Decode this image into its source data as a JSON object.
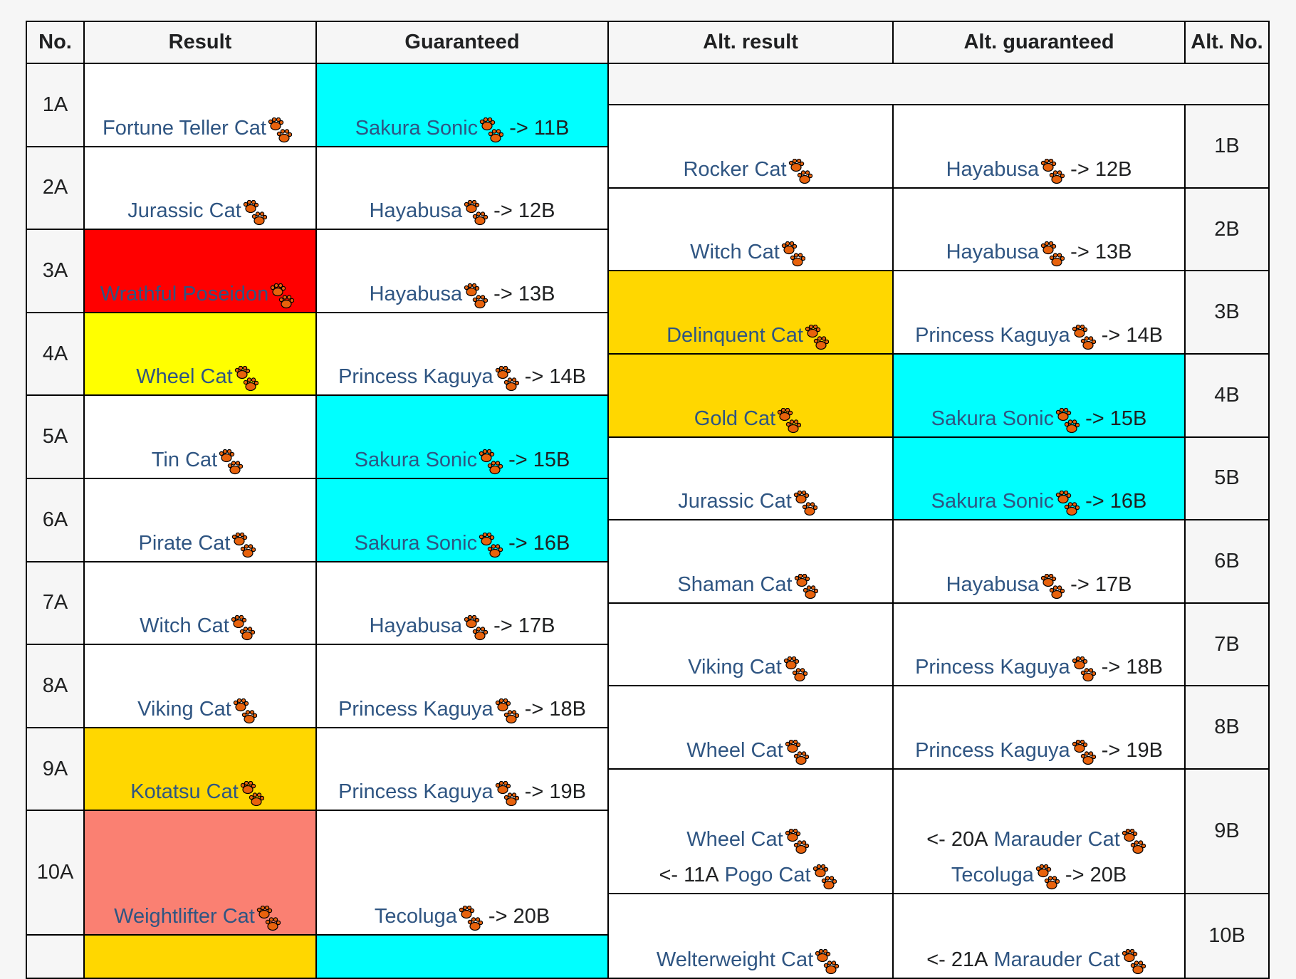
{
  "headers": [
    "No.",
    "Result",
    "Guaranteed",
    "Alt. result",
    "Alt. guaranteed",
    "Alt. No."
  ],
  "colors": {
    "red": "#ff0000",
    "yellow": "#ffff00",
    "gold": "#ffd700",
    "cyan": "#00ffff",
    "salmon": "#fa8072",
    "white": "#ffffff",
    "link": "#2f5582",
    "paw": "#e8620c"
  },
  "rows_a": [
    {
      "no": "1A",
      "result": {
        "bg": "#ffffff",
        "lines": [
          {
            "name": "Fortune Teller Cat"
          }
        ]
      },
      "guaranteed": {
        "bg": "#00ffff",
        "lines": [
          {
            "name": "Sakura Sonic",
            "next": "-> 11B"
          }
        ]
      }
    },
    {
      "no": "2A",
      "result": {
        "bg": "#ffffff",
        "lines": [
          {
            "name": "Jurassic Cat"
          }
        ]
      },
      "guaranteed": {
        "bg": "#ffffff",
        "lines": [
          {
            "name": "Hayabusa",
            "next": "-> 12B"
          }
        ]
      }
    },
    {
      "no": "3A",
      "result": {
        "bg": "#ff0000",
        "lines": [
          {
            "name": "Wrathful Poseidon"
          }
        ]
      },
      "guaranteed": {
        "bg": "#ffffff",
        "lines": [
          {
            "name": "Hayabusa",
            "next": "-> 13B"
          }
        ]
      }
    },
    {
      "no": "4A",
      "result": {
        "bg": "#ffff00",
        "lines": [
          {
            "name": "Wheel Cat"
          }
        ]
      },
      "guaranteed": {
        "bg": "#ffffff",
        "lines": [
          {
            "name": "Princess Kaguya",
            "next": "-> 14B"
          }
        ]
      }
    },
    {
      "no": "5A",
      "result": {
        "bg": "#ffffff",
        "lines": [
          {
            "name": "Tin Cat"
          }
        ]
      },
      "guaranteed": {
        "bg": "#00ffff",
        "lines": [
          {
            "name": "Sakura Sonic",
            "next": "-> 15B"
          }
        ]
      }
    },
    {
      "no": "6A",
      "result": {
        "bg": "#ffffff",
        "lines": [
          {
            "name": "Pirate Cat"
          }
        ]
      },
      "guaranteed": {
        "bg": "#00ffff",
        "lines": [
          {
            "name": "Sakura Sonic",
            "next": "-> 16B"
          }
        ]
      }
    },
    {
      "no": "7A",
      "result": {
        "bg": "#ffffff",
        "lines": [
          {
            "name": "Witch Cat"
          }
        ]
      },
      "guaranteed": {
        "bg": "#ffffff",
        "lines": [
          {
            "name": "Hayabusa",
            "next": "-> 17B"
          }
        ]
      }
    },
    {
      "no": "8A",
      "result": {
        "bg": "#ffffff",
        "lines": [
          {
            "name": "Viking Cat"
          }
        ]
      },
      "guaranteed": {
        "bg": "#ffffff",
        "lines": [
          {
            "name": "Princess Kaguya",
            "next": "-> 18B"
          }
        ]
      }
    },
    {
      "no": "9A",
      "result": {
        "bg": "#ffd700",
        "lines": [
          {
            "name": "Kotatsu Cat"
          }
        ]
      },
      "guaranteed": {
        "bg": "#ffffff",
        "lines": [
          {
            "name": "Princess Kaguya",
            "next": "-> 19B"
          }
        ]
      }
    },
    {
      "no": "10A",
      "result": {
        "bg": "#fa8072",
        "lines": [
          {
            "name": "Weightlifter Cat"
          }
        ]
      },
      "guaranteed": {
        "bg": "#ffffff",
        "lines": [
          {
            "name": "Tecoluga",
            "next": "-> 20B"
          }
        ]
      }
    },
    {
      "no": "",
      "result": {
        "bg": "#ffd700",
        "lines": []
      },
      "guaranteed": {
        "bg": "#00ffff",
        "lines": []
      }
    }
  ],
  "rows_b": [
    {
      "no": "1B",
      "result": {
        "bg": "#ffffff",
        "lines": [
          {
            "name": "Rocker Cat"
          }
        ]
      },
      "guaranteed": {
        "bg": "#ffffff",
        "lines": [
          {
            "name": "Hayabusa",
            "next": "-> 12B"
          }
        ]
      }
    },
    {
      "no": "2B",
      "result": {
        "bg": "#ffffff",
        "lines": [
          {
            "name": "Witch Cat"
          }
        ]
      },
      "guaranteed": {
        "bg": "#ffffff",
        "lines": [
          {
            "name": "Hayabusa",
            "next": "-> 13B"
          }
        ]
      }
    },
    {
      "no": "3B",
      "result": {
        "bg": "#ffd700",
        "lines": [
          {
            "name": "Delinquent Cat"
          }
        ]
      },
      "guaranteed": {
        "bg": "#ffffff",
        "lines": [
          {
            "name": "Princess Kaguya",
            "next": "-> 14B"
          }
        ]
      }
    },
    {
      "no": "4B",
      "result": {
        "bg": "#ffd700",
        "lines": [
          {
            "name": "Gold Cat"
          }
        ]
      },
      "guaranteed": {
        "bg": "#00ffff",
        "lines": [
          {
            "name": "Sakura Sonic",
            "next": "-> 15B"
          }
        ]
      }
    },
    {
      "no": "5B",
      "result": {
        "bg": "#ffffff",
        "lines": [
          {
            "name": "Jurassic Cat"
          }
        ]
      },
      "guaranteed": {
        "bg": "#00ffff",
        "lines": [
          {
            "name": "Sakura Sonic",
            "next": "-> 16B"
          }
        ]
      }
    },
    {
      "no": "6B",
      "result": {
        "bg": "#ffffff",
        "lines": [
          {
            "name": "Shaman Cat"
          }
        ]
      },
      "guaranteed": {
        "bg": "#ffffff",
        "lines": [
          {
            "name": "Hayabusa",
            "next": "-> 17B"
          }
        ]
      }
    },
    {
      "no": "7B",
      "result": {
        "bg": "#ffffff",
        "lines": [
          {
            "name": "Viking Cat"
          }
        ]
      },
      "guaranteed": {
        "bg": "#ffffff",
        "lines": [
          {
            "name": "Princess Kaguya",
            "next": "-> 18B"
          }
        ]
      }
    },
    {
      "no": "8B",
      "result": {
        "bg": "#ffffff",
        "lines": [
          {
            "name": "Wheel Cat"
          }
        ]
      },
      "guaranteed": {
        "bg": "#ffffff",
        "lines": [
          {
            "name": "Princess Kaguya",
            "next": "-> 19B"
          }
        ]
      }
    },
    {
      "no": "9B",
      "result": {
        "bg": "#ffffff",
        "lines": [
          {
            "name": "Wheel Cat"
          },
          {
            "prefix": "<- 11A",
            "name": "Pogo Cat"
          }
        ]
      },
      "guaranteed": {
        "bg": "#ffffff",
        "lines": [
          {
            "prefix": "<- 20A",
            "name": "Marauder Cat"
          },
          {
            "name": "Tecoluga",
            "next": "-> 20B"
          }
        ]
      }
    },
    {
      "no": "10B",
      "result": {
        "bg": "#ffffff",
        "lines": [
          {
            "name": "Welterweight Cat"
          }
        ]
      },
      "guaranteed": {
        "bg": "#ffffff",
        "lines": [
          {
            "prefix": "<- 21A",
            "name": "Marauder Cat"
          }
        ]
      }
    }
  ]
}
